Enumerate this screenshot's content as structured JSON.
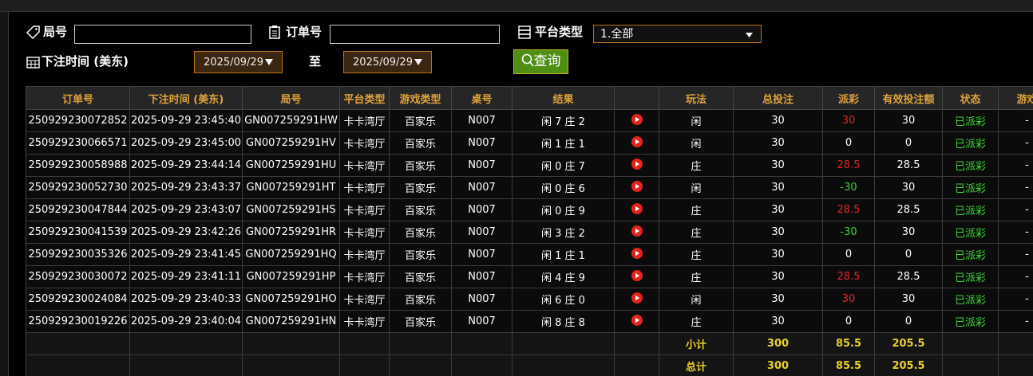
{
  "filters": {
    "round_label": "局号",
    "order_label": "订单号",
    "platform_label": "平台类型",
    "platform_value": "1.全部",
    "time_label": "下注时间 (美东)",
    "date_from": "2025/09/29",
    "to_label": "至",
    "date_to": "2025/09/29",
    "search_button": "查询"
  },
  "table": {
    "headers": [
      "订单号",
      "下注时间 (美东)",
      "局号",
      "平台类型",
      "游戏类型",
      "桌号",
      "结果",
      "玩法",
      "总投注",
      "派彩",
      "有效投注额",
      "状态",
      "游戏"
    ],
    "rows": [
      [
        "250929230072852",
        "2025-09-29 23:45:40",
        "GN007259291HW",
        "卡卡湾厅",
        "百家乐",
        "N007",
        "闲 7 庄 2",
        "闲",
        30,
        30,
        30,
        "已派彩",
        "-"
      ],
      [
        "250929230066571",
        "2025-09-29 23:45:00",
        "GN007259291HV",
        "卡卡湾厅",
        "百家乐",
        "N007",
        "闲 1 庄 1",
        "闲",
        30,
        0,
        0,
        "已派彩",
        "-"
      ],
      [
        "250929230058988",
        "2025-09-29 23:44:14",
        "GN007259291HU",
        "卡卡湾厅",
        "百家乐",
        "N007",
        "闲 0 庄 7",
        "庄",
        30,
        28.5,
        28.5,
        "已派彩",
        "-"
      ],
      [
        "250929230052730",
        "2025-09-29 23:43:37",
        "GN007259291HT",
        "卡卡湾厅",
        "百家乐",
        "N007",
        "闲 0 庄 6",
        "闲",
        30,
        -30,
        30,
        "已派彩",
        "-"
      ],
      [
        "250929230047844",
        "2025-09-29 23:43:07",
        "GN007259291HS",
        "卡卡湾厅",
        "百家乐",
        "N007",
        "闲 0 庄 9",
        "庄",
        30,
        28.5,
        28.5,
        "已派彩",
        "-"
      ],
      [
        "250929230041539",
        "2025-09-29 23:42:26",
        "GN007259291HR",
        "卡卡湾厅",
        "百家乐",
        "N007",
        "闲 3 庄 2",
        "庄",
        30,
        -30,
        30,
        "已派彩",
        "-"
      ],
      [
        "250929230035326",
        "2025-09-29 23:41:45",
        "GN007259291HQ",
        "卡卡湾厅",
        "百家乐",
        "N007",
        "闲 1 庄 1",
        "庄",
        30,
        0,
        0,
        "已派彩",
        "-"
      ],
      [
        "250929230030072",
        "2025-09-29 23:41:11",
        "GN007259291HP",
        "卡卡湾厅",
        "百家乐",
        "N007",
        "闲 4 庄 9",
        "庄",
        30,
        28.5,
        28.5,
        "已派彩",
        "-"
      ],
      [
        "250929230024084",
        "2025-09-29 23:40:33",
        "GN007259291HO",
        "卡卡湾厅",
        "百家乐",
        "N007",
        "闲 6 庄 0",
        "闲",
        30,
        30,
        30,
        "已派彩",
        "-"
      ],
      [
        "250929230019226",
        "2025-09-29 23:40:04",
        "GN007259291HN",
        "卡卡湾厅",
        "百家乐",
        "N007",
        "闲 8 庄 8",
        "庄",
        30,
        0,
        0,
        "已派彩",
        "-"
      ]
    ],
    "summary": [
      {
        "label": "小计",
        "total_bet": 300,
        "payout": 85.5,
        "valid_bet": 205.5
      },
      {
        "label": "总计",
        "total_bet": 300,
        "payout": 85.5,
        "valid_bet": 205.5
      }
    ]
  }
}
